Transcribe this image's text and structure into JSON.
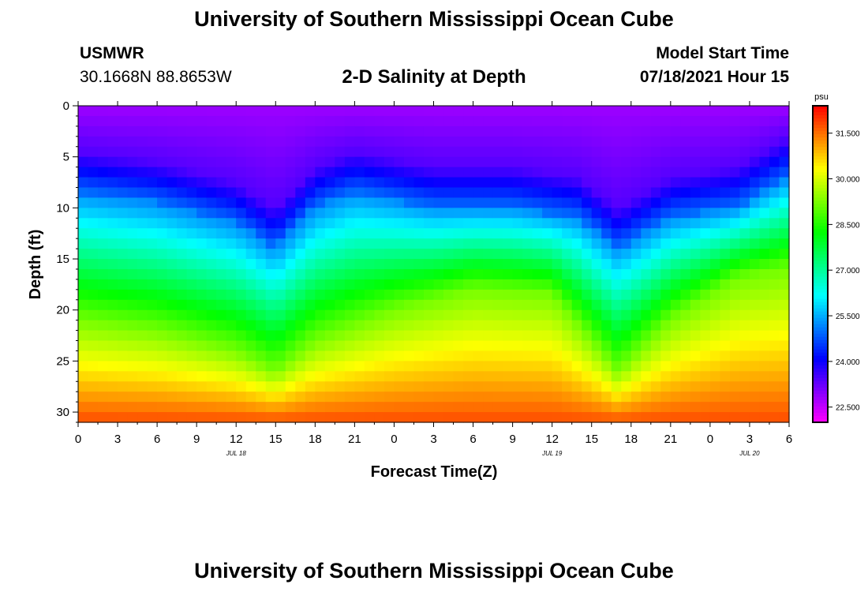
{
  "header": {
    "title": "University of Southern Mississippi Ocean Cube",
    "station": "USMWR",
    "coords": "30.1668N  88.8653W",
    "plot_title": "2-D Salinity at Depth",
    "model_label": "Model Start Time",
    "model_time": "07/18/2021 Hour 15"
  },
  "footer": {
    "title": "University of Southern Mississippi Ocean Cube"
  },
  "chart_data": {
    "type": "heatmap",
    "title": "2-D Salinity at Depth",
    "xlabel": "Forecast Time(Z)",
    "ylabel": "Depth (ft)",
    "x_tick_labels": [
      "0",
      "3",
      "6",
      "9",
      "12",
      "15",
      "18",
      "21",
      "0",
      "3",
      "6",
      "9",
      "12",
      "15",
      "18",
      "21",
      "0",
      "3",
      "6"
    ],
    "x_range_hours": [
      0,
      54
    ],
    "date_labels": [
      {
        "label": "JUL 18",
        "hour": 12
      },
      {
        "label": "JUL 19",
        "hour": 36
      },
      {
        "label": "JUL 20",
        "hour": 51
      }
    ],
    "y_ticks": [
      0,
      5,
      10,
      15,
      20,
      25,
      30
    ],
    "ylim": [
      0,
      31
    ],
    "colorbar": {
      "unit": "psu",
      "min": 22.0,
      "max": 32.4,
      "tick_labels": [
        "31.500",
        "30.000",
        "28.500",
        "27.000",
        "25.500",
        "24.000",
        "22.500"
      ]
    },
    "field_model": {
      "description": "Salinity (psu) vs forecast hour and depth; top low (~23), bottom high (~31.5)",
      "halocline_depth_ft": [
        {
          "hour": 0,
          "depth": 8.5
        },
        {
          "hour": 6,
          "depth": 9.5
        },
        {
          "hour": 12,
          "depth": 11.5
        },
        {
          "hour": 15,
          "depth": 14
        },
        {
          "hour": 18,
          "depth": 10
        },
        {
          "hour": 21,
          "depth": 8.5
        },
        {
          "hour": 27,
          "depth": 10
        },
        {
          "hour": 33,
          "depth": 10
        },
        {
          "hour": 38,
          "depth": 11
        },
        {
          "hour": 41,
          "depth": 14
        },
        {
          "hour": 45,
          "depth": 11
        },
        {
          "hour": 50,
          "depth": 10
        },
        {
          "hour": 54,
          "depth": 7
        }
      ],
      "deep_layer_depth_ft": [
        {
          "hour": 0,
          "depth": 21
        },
        {
          "hour": 6,
          "depth": 22
        },
        {
          "hour": 12,
          "depth": 24
        },
        {
          "hour": 15,
          "depth": 26
        },
        {
          "hour": 18,
          "depth": 23
        },
        {
          "hour": 24,
          "depth": 20
        },
        {
          "hour": 30,
          "depth": 18
        },
        {
          "hour": 36,
          "depth": 18.5
        },
        {
          "hour": 41,
          "depth": 26
        },
        {
          "hour": 45,
          "depth": 21
        },
        {
          "hour": 50,
          "depth": 17
        },
        {
          "hour": 54,
          "depth": 16
        }
      ]
    }
  }
}
